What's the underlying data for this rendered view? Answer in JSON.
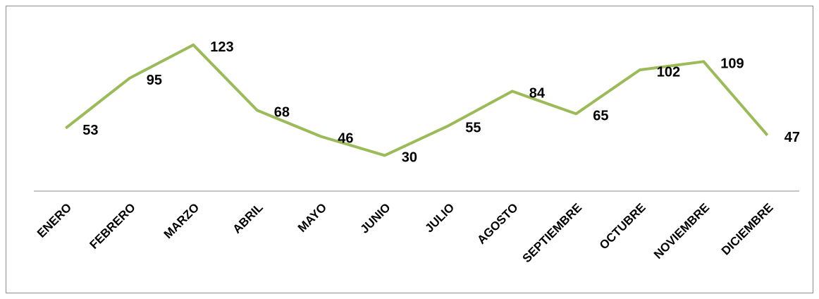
{
  "chart_data": {
    "type": "line",
    "categories": [
      "ENERO",
      "FEBRERO",
      "MARZO",
      "ABRIL",
      "MAYO",
      "JUNIO",
      "JULIO",
      "AGOSTO",
      "SEPTIEMBRE",
      "OCTUBRE",
      "NOVIEMBRE",
      "DICIEMBRE"
    ],
    "values": [
      53,
      95,
      123,
      68,
      46,
      30,
      55,
      84,
      65,
      102,
      109,
      47
    ],
    "color": "#9bbb59",
    "ylim": [
      0,
      140
    ]
  }
}
